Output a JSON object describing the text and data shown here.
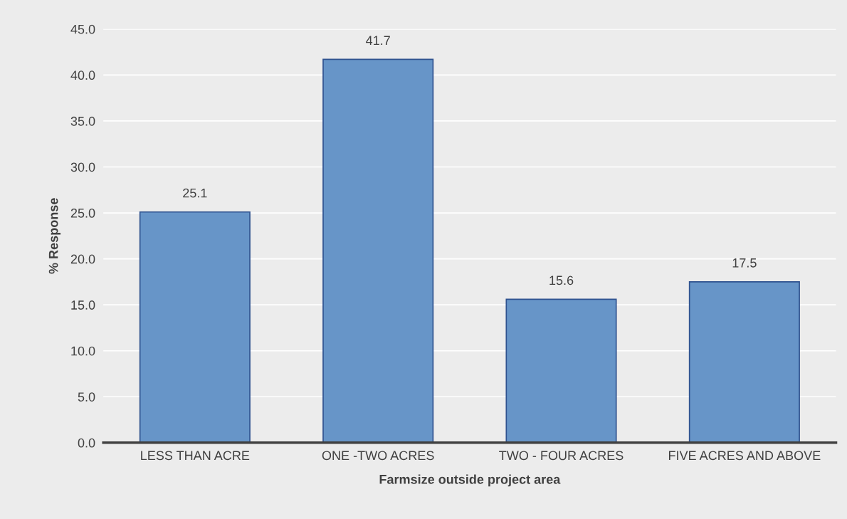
{
  "chart_data": {
    "type": "bar",
    "xlabel": "Farmsize outside project area",
    "ylabel": "% Response",
    "categories": [
      "LESS THAN ACRE",
      "ONE -TWO ACRES",
      "TWO - FOUR ACRES",
      "FIVE ACRES AND ABOVE"
    ],
    "values": [
      25.1,
      41.7,
      15.6,
      17.5
    ],
    "color": "#6795c8",
    "ylim": [
      0,
      45
    ],
    "yticks": [
      {
        "value": 0,
        "label": "0.0"
      },
      {
        "value": 5,
        "label": "5.0"
      },
      {
        "value": 10,
        "label": "10.0"
      },
      {
        "value": 15,
        "label": "15.0"
      },
      {
        "value": 20,
        "label": "20.0"
      },
      {
        "value": 25,
        "label": "25.0"
      },
      {
        "value": 30,
        "label": "30.0"
      },
      {
        "value": 35,
        "label": "35.0"
      },
      {
        "value": 40,
        "label": "40.0"
      },
      {
        "value": 45,
        "label": "45.0"
      }
    ],
    "grid": "y",
    "data_labels": true
  }
}
